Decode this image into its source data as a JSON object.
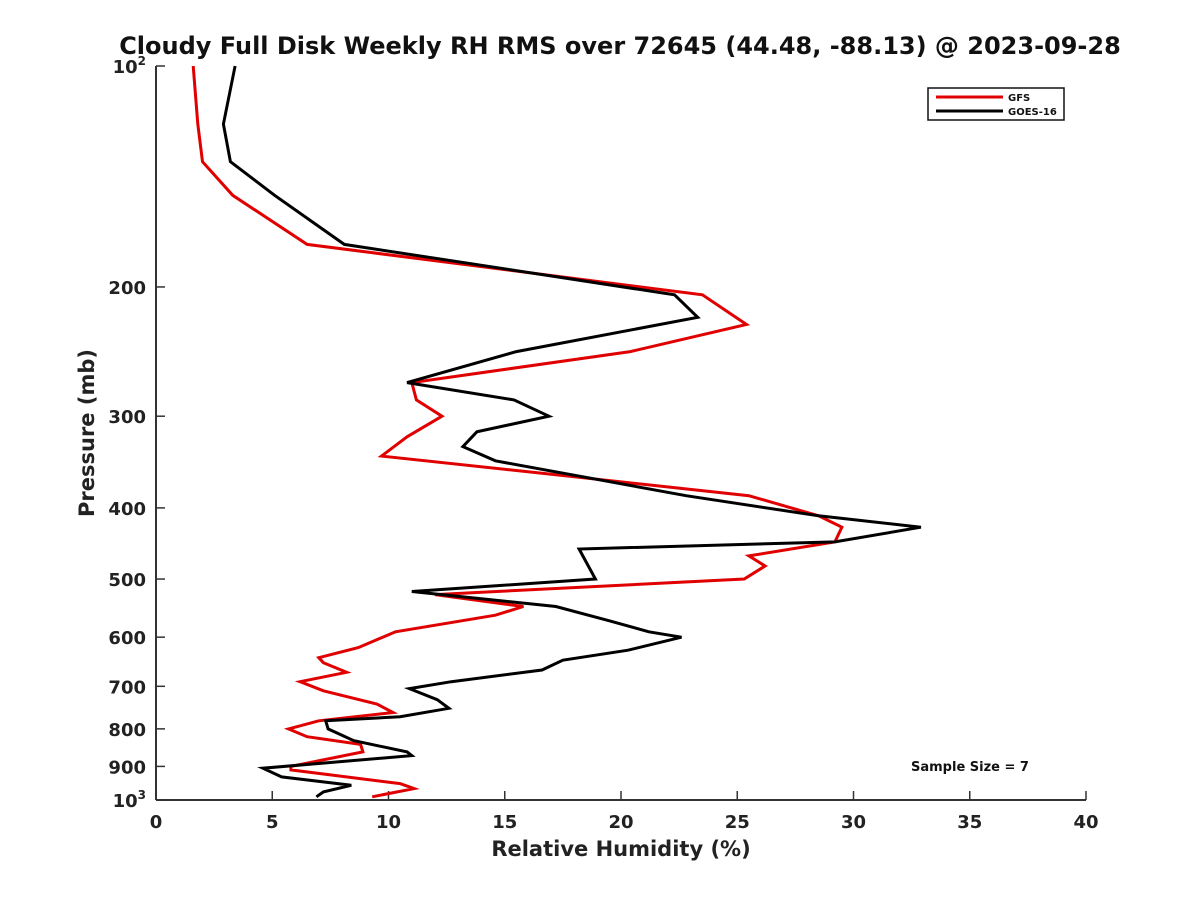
{
  "chart_data": {
    "type": "line",
    "title": "Cloudy Full Disk Weekly RH RMS over 72645 (44.48, -88.13) @ 2023-09-28",
    "xlabel": "Relative Humidity (%)",
    "ylabel": "Pressure (mb)",
    "xlim": [
      0,
      40
    ],
    "ylim": [
      100,
      1000
    ],
    "y_scale": "log",
    "y_reversed": true,
    "grid": false,
    "legend_position": "top-right",
    "x_ticks": [
      "0",
      "5",
      "10",
      "15",
      "20",
      "25",
      "30",
      "35",
      "40"
    ],
    "y_ticks": [
      {
        "value": 100,
        "base": "10",
        "exp": "2"
      },
      {
        "value": 200,
        "label": "200"
      },
      {
        "value": 300,
        "label": "300"
      },
      {
        "value": 400,
        "label": "400"
      },
      {
        "value": 500,
        "label": "500"
      },
      {
        "value": 600,
        "label": "600"
      },
      {
        "value": 700,
        "label": "700"
      },
      {
        "value": 800,
        "label": "800"
      },
      {
        "value": 900,
        "label": "900"
      },
      {
        "value": 1000,
        "base": "10",
        "exp": "3"
      }
    ],
    "annotation": "Sample Size = 7",
    "series": [
      {
        "name": "GFS",
        "color": "#e00000",
        "points": [
          [
            1.6,
            100
          ],
          [
            1.8,
            120
          ],
          [
            2.0,
            135
          ],
          [
            3.3,
            150
          ],
          [
            6.5,
            175
          ],
          [
            23.5,
            205
          ],
          [
            25.4,
            225
          ],
          [
            20.4,
            245
          ],
          [
            11.0,
            270
          ],
          [
            11.2,
            285
          ],
          [
            12.3,
            300
          ],
          [
            10.8,
            320
          ],
          [
            9.7,
            340
          ],
          [
            17.0,
            360
          ],
          [
            25.5,
            385
          ],
          [
            28.5,
            410
          ],
          [
            29.5,
            425
          ],
          [
            29.2,
            445
          ],
          [
            25.5,
            465
          ],
          [
            26.2,
            480
          ],
          [
            25.3,
            500
          ],
          [
            12.0,
            525
          ],
          [
            15.8,
            545
          ],
          [
            14.6,
            560
          ],
          [
            10.3,
            590
          ],
          [
            8.7,
            620
          ],
          [
            7.0,
            640
          ],
          [
            7.2,
            650
          ],
          [
            8.2,
            670
          ],
          [
            6.2,
            690
          ],
          [
            7.2,
            710
          ],
          [
            9.5,
            740
          ],
          [
            10.2,
            760
          ],
          [
            7.0,
            780
          ],
          [
            5.7,
            800
          ],
          [
            6.5,
            820
          ],
          [
            8.8,
            840
          ],
          [
            8.9,
            860
          ],
          [
            5.8,
            900
          ],
          [
            5.8,
            910
          ],
          [
            10.5,
            950
          ],
          [
            11.1,
            965
          ],
          [
            9.3,
            990
          ]
        ]
      },
      {
        "name": "GOES-16",
        "color": "#000000",
        "points": [
          [
            3.4,
            100
          ],
          [
            2.9,
            120
          ],
          [
            3.2,
            135
          ],
          [
            5.1,
            150
          ],
          [
            8.1,
            175
          ],
          [
            22.3,
            205
          ],
          [
            23.3,
            220
          ],
          [
            15.5,
            245
          ],
          [
            10.8,
            270
          ],
          [
            15.4,
            285
          ],
          [
            16.9,
            300
          ],
          [
            13.8,
            315
          ],
          [
            13.2,
            330
          ],
          [
            14.6,
            345
          ],
          [
            22.8,
            385
          ],
          [
            28.5,
            410
          ],
          [
            32.9,
            425
          ],
          [
            29.2,
            445
          ],
          [
            18.2,
            455
          ],
          [
            18.9,
            500
          ],
          [
            11.0,
            520
          ],
          [
            17.2,
            545
          ],
          [
            19.5,
            570
          ],
          [
            21.2,
            590
          ],
          [
            22.6,
            600
          ],
          [
            20.3,
            625
          ],
          [
            17.5,
            645
          ],
          [
            16.6,
            665
          ],
          [
            12.7,
            690
          ],
          [
            10.9,
            705
          ],
          [
            12.1,
            730
          ],
          [
            12.6,
            750
          ],
          [
            10.5,
            770
          ],
          [
            7.3,
            780
          ],
          [
            7.4,
            800
          ],
          [
            8.5,
            830
          ],
          [
            10.8,
            860
          ],
          [
            11.0,
            870
          ],
          [
            4.6,
            905
          ],
          [
            5.4,
            930
          ],
          [
            8.4,
            955
          ],
          [
            7.2,
            975
          ],
          [
            6.9,
            990
          ]
        ]
      }
    ]
  }
}
